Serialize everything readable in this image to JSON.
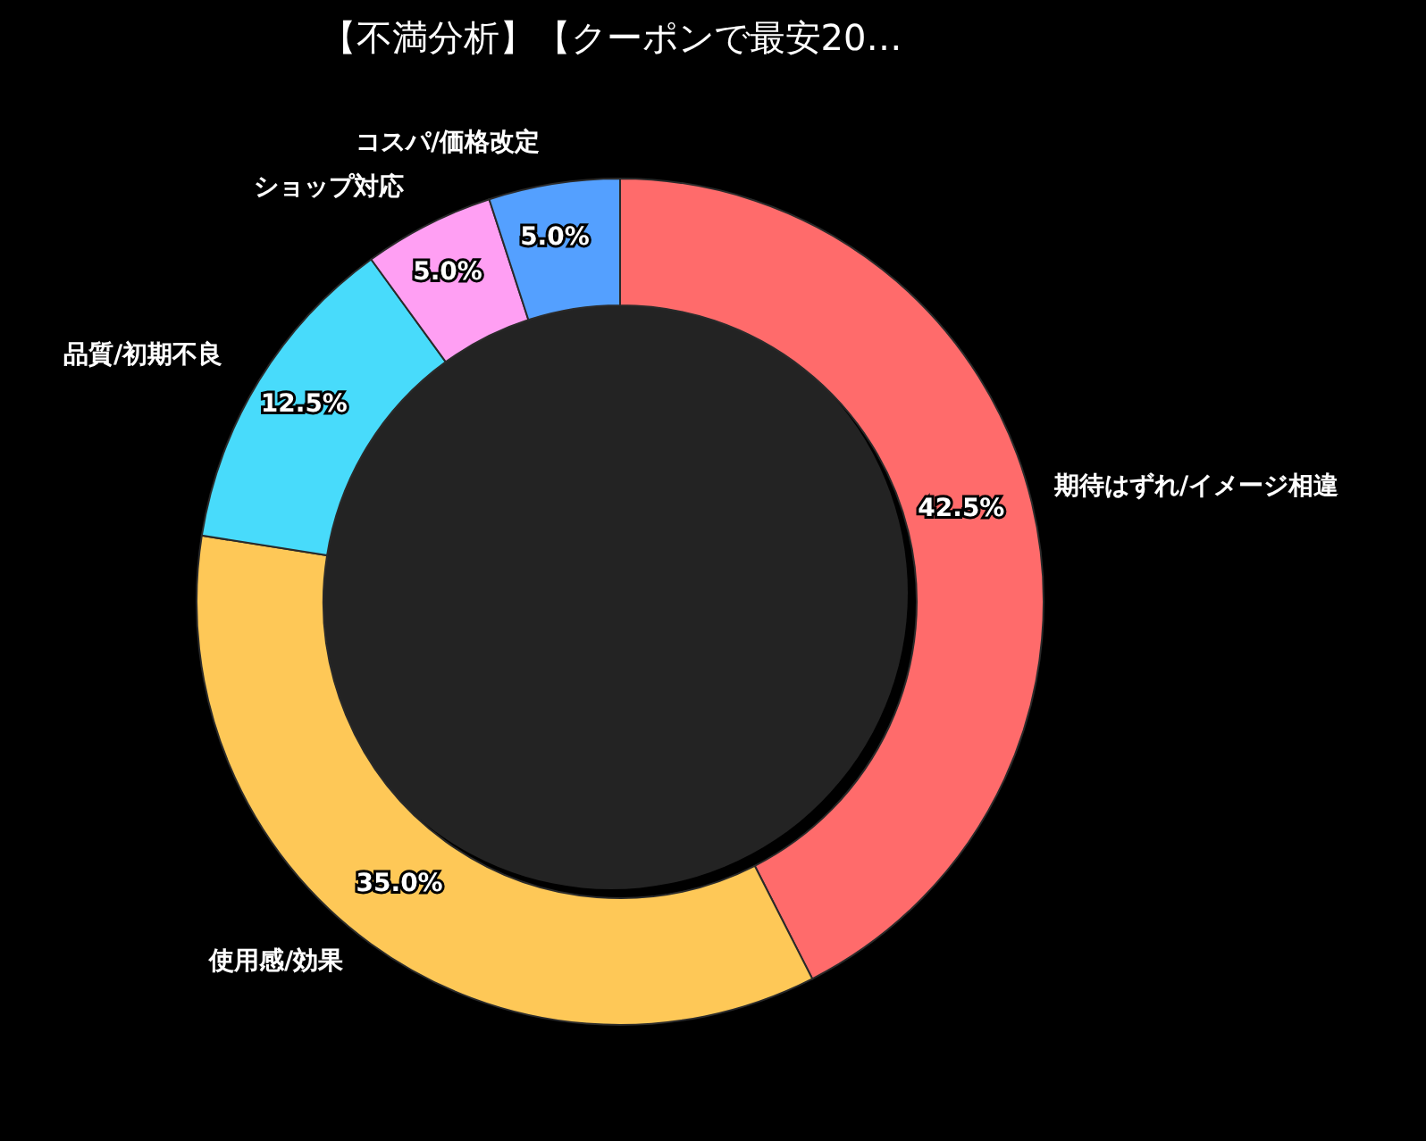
{
  "chart_data": {
    "type": "donut",
    "title": "【不満分析】【クーポンで最安20…",
    "categories": [
      "期待はずれ/イメージ相違",
      "使用感/効果",
      "品質/初期不良",
      "ショップ対応",
      "コスパ/価格改定"
    ],
    "values": [
      42.5,
      35.0,
      12.5,
      5.0,
      5.0
    ],
    "value_labels": [
      "42.5%",
      "35.0%",
      "12.5%",
      "5.0%",
      "5.0%"
    ],
    "colors": [
      "#ff6b6b",
      "#fec857",
      "#48dbfb",
      "#ff9ff3",
      "#54a0ff"
    ],
    "legend": false
  }
}
